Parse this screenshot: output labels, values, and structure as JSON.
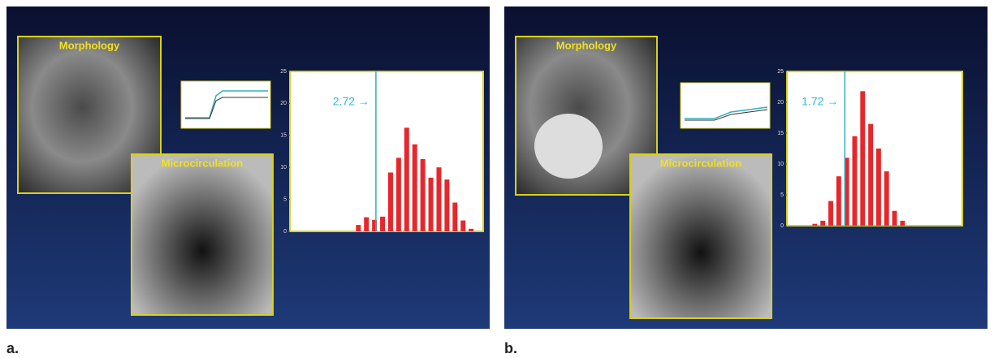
{
  "panels": [
    {
      "label": "a.",
      "morphology": "Morphology",
      "microcirculation": "Microcirculation"
    },
    {
      "label": "b.",
      "morphology": "Morphology",
      "microcirculation": "Microcirculation"
    }
  ],
  "chart_data": [
    {
      "type": "bar",
      "annotation": "2.72 →",
      "categories": [
        null,
        null,
        null,
        null,
        null,
        null,
        null,
        null,
        null,
        null,
        null,
        null,
        null,
        null,
        null,
        null,
        null,
        null,
        null,
        null,
        null,
        null,
        null,
        null
      ],
      "values": [
        0,
        0,
        0,
        0,
        0,
        0,
        0,
        0,
        1,
        2.2,
        1.8,
        2.3,
        9.2,
        11.5,
        16.2,
        13.6,
        11.3,
        8.4,
        10,
        8.1,
        4.5,
        1.7,
        0.4,
        0
      ],
      "color": "#e8262a",
      "ylim": [
        0,
        25
      ],
      "yticks": [
        0,
        5,
        10,
        15,
        20,
        25
      ]
    },
    {
      "type": "bar",
      "annotation": "1.72 →",
      "categories": [
        null,
        null,
        null,
        null,
        null,
        null,
        null,
        null,
        null,
        null,
        null,
        null,
        null,
        null,
        null,
        null,
        null,
        null,
        null,
        null,
        null,
        null
      ],
      "values": [
        0,
        0,
        0,
        0.3,
        0.8,
        4,
        8,
        11,
        14.5,
        21.8,
        16.5,
        12.5,
        8.8,
        2.4,
        0.8,
        0,
        0,
        0,
        0,
        0,
        0,
        0
      ],
      "color": "#e8262a",
      "ylim": [
        0,
        25
      ],
      "yticks": [
        0,
        5,
        10,
        15,
        20,
        25
      ]
    }
  ]
}
